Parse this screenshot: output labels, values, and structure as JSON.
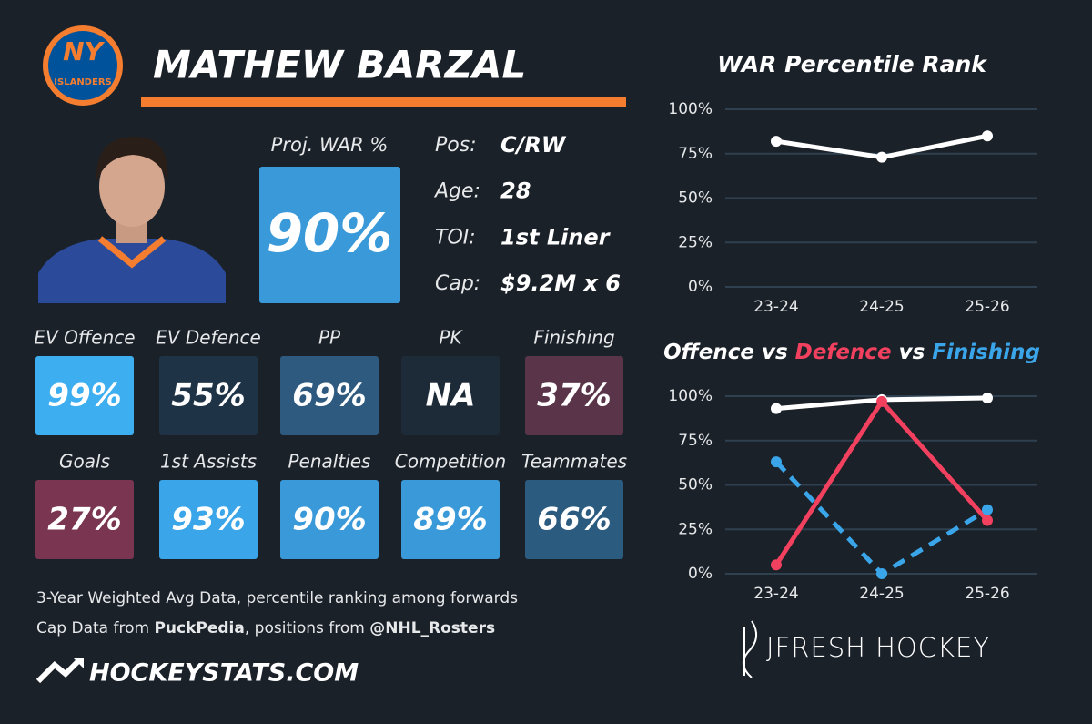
{
  "logo": {
    "top": "NY",
    "bottom": "ISLANDERS"
  },
  "player": {
    "name": "MATHEW BARZAL"
  },
  "proj": {
    "label": "Proj. WAR %",
    "value": "90%",
    "color": "#3a9ad9"
  },
  "info": [
    {
      "label": "Pos:",
      "value": "C/RW"
    },
    {
      "label": "Age:",
      "value": "28"
    },
    {
      "label": "TOI:",
      "value": "1st Liner"
    },
    {
      "label": "Cap:",
      "value": "$9.2M x 6"
    }
  ],
  "tiles": [
    {
      "label": "EV Offence",
      "value": "99%",
      "color": "#3daef0"
    },
    {
      "label": "EV Defence",
      "value": "55%",
      "color": "#1f3346"
    },
    {
      "label": "PP",
      "value": "69%",
      "color": "#2d5a7e"
    },
    {
      "label": "PK",
      "value": "NA",
      "color": "#1d2a38"
    },
    {
      "label": "Finishing",
      "value": "37%",
      "color": "#5a3449"
    },
    {
      "label": "Goals",
      "value": "27%",
      "color": "#7a3550"
    },
    {
      "label": "1st Assists",
      "value": "93%",
      "color": "#3aa5e8"
    },
    {
      "label": "Penalties",
      "value": "90%",
      "color": "#3a9ad9"
    },
    {
      "label": "Competition",
      "value": "89%",
      "color": "#3a9ad9"
    },
    {
      "label": "Teammates",
      "value": "66%",
      "color": "#2c5b80"
    }
  ],
  "footer": {
    "line1": "3-Year Weighted Avg Data, percentile ranking among forwards",
    "line2": [
      "Cap Data from ",
      "PuckPedia",
      ", positions from ",
      "@NHL_Rosters"
    ],
    "brand": "HOCKEYSTATS.COM",
    "credit": "JFRESH HOCKEY"
  },
  "chart_data": [
    {
      "type": "line",
      "title": "WAR Percentile Rank",
      "categories": [
        "23-24",
        "24-25",
        "25-26"
      ],
      "series": [
        {
          "color": "#ffffff",
          "values": [
            82,
            73,
            85
          ]
        }
      ],
      "ylim": [
        0,
        100
      ],
      "yticks": [
        {
          "value": 0,
          "label": "0%"
        },
        {
          "value": 25,
          "label": "25%"
        },
        {
          "value": 50,
          "label": "50%"
        },
        {
          "value": 75,
          "label": "75%"
        },
        {
          "value": 100,
          "label": "100%"
        }
      ],
      "grid": true
    },
    {
      "type": "line",
      "title_joiner": "vs",
      "categories": [
        "23-24",
        "24-25",
        "25-26"
      ],
      "series": [
        {
          "name": "Offence",
          "color": "#ffffff",
          "values": [
            93,
            98,
            99
          ]
        },
        {
          "name": "Defence",
          "color": "#f2405f",
          "values": [
            5,
            97,
            30
          ]
        },
        {
          "name": "Finishing",
          "color": "#3aa5e8",
          "values": [
            63,
            0,
            36
          ],
          "dashed": true
        }
      ],
      "ylim": [
        0,
        100
      ],
      "yticks": [
        {
          "value": 0,
          "label": "0%"
        },
        {
          "value": 25,
          "label": "25%"
        },
        {
          "value": 50,
          "label": "50%"
        },
        {
          "value": 75,
          "label": "75%"
        },
        {
          "value": 100,
          "label": "100%"
        }
      ],
      "grid": true
    }
  ]
}
